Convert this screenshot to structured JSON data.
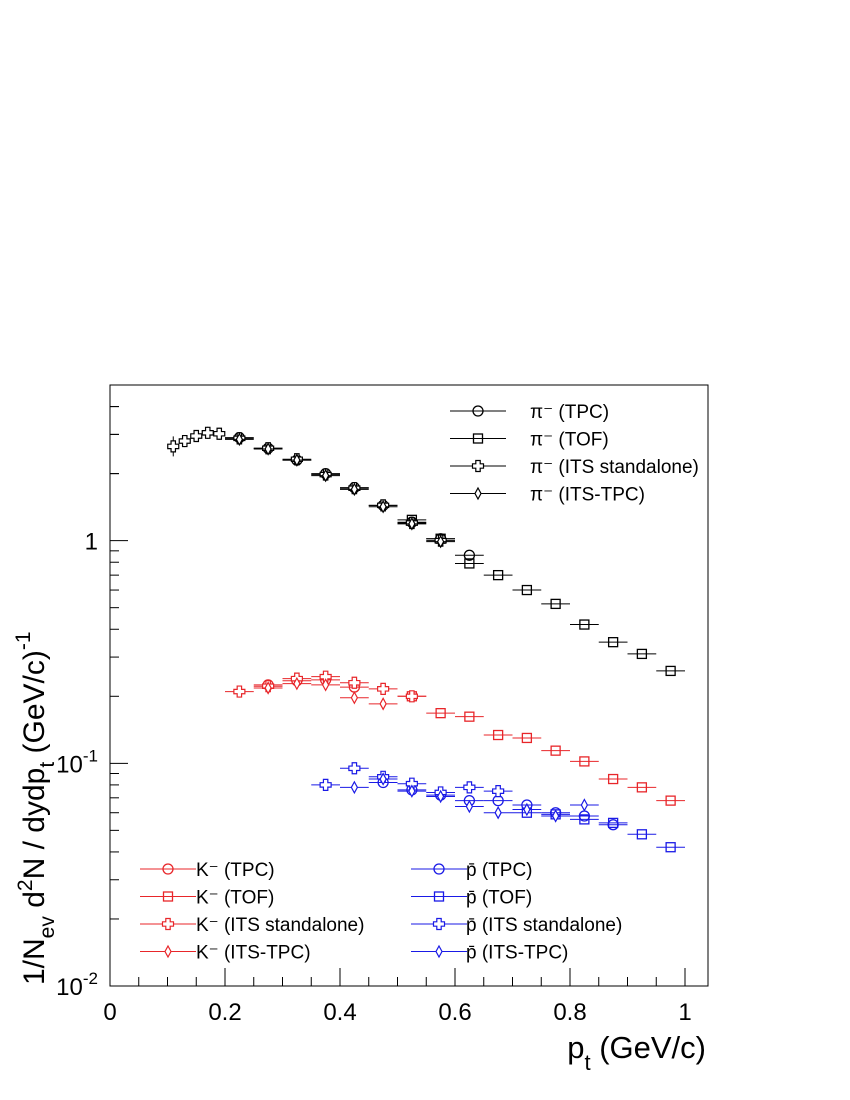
{
  "chart_data": {
    "type": "scatter",
    "title": "",
    "xlabel": "p_t (GeV/c)",
    "ylabel": "1/N_ev d^2N / dydp_t (GeV/c)^-1",
    "xlim": [
      0,
      1.04
    ],
    "ylim": [
      0.01,
      5
    ],
    "yscale": "log",
    "grid": false,
    "x_ticks": [
      "0",
      "0.2",
      "0.4",
      "0.6",
      "0.8",
      "1"
    ],
    "y_ticks": [
      "10^-2",
      "10^-1",
      "1"
    ],
    "legend_positions": [
      "top-right",
      "bottom-left",
      "bottom-center"
    ],
    "series": [
      {
        "name": "π⁻ (TPC)",
        "group": "pi",
        "color": "#000000",
        "marker": "circle",
        "points": [
          [
            0.225,
            2.9
          ],
          [
            0.275,
            2.6
          ],
          [
            0.325,
            2.3
          ],
          [
            0.375,
            2.0
          ],
          [
            0.425,
            1.73
          ],
          [
            0.475,
            1.44
          ],
          [
            0.525,
            1.21
          ],
          [
            0.575,
            1.02
          ],
          [
            0.625,
            0.86
          ]
        ]
      },
      {
        "name": "π⁻ (TOF)",
        "group": "pi",
        "color": "#000000",
        "marker": "square",
        "points": [
          [
            0.525,
            1.24
          ],
          [
            0.575,
            1.02
          ],
          [
            0.625,
            0.79
          ],
          [
            0.675,
            0.7
          ],
          [
            0.725,
            0.6
          ],
          [
            0.775,
            0.52
          ],
          [
            0.825,
            0.42
          ],
          [
            0.875,
            0.35
          ],
          [
            0.925,
            0.31
          ],
          [
            0.975,
            0.26
          ]
        ]
      },
      {
        "name": "π⁻ (ITS standalone)",
        "group": "pi",
        "color": "#000000",
        "marker": "cross",
        "points": [
          [
            0.11,
            2.65
          ],
          [
            0.13,
            2.8
          ],
          [
            0.15,
            2.95
          ],
          [
            0.17,
            3.05
          ],
          [
            0.19,
            3.02
          ],
          [
            0.225,
            2.88
          ],
          [
            0.275,
            2.6
          ],
          [
            0.325,
            2.32
          ],
          [
            0.375,
            1.98
          ],
          [
            0.425,
            1.72
          ],
          [
            0.475,
            1.44
          ],
          [
            0.525,
            1.2
          ],
          [
            0.575,
            1.0
          ]
        ]
      },
      {
        "name": "π⁻ (ITS-TPC)",
        "group": "pi",
        "color": "#000000",
        "marker": "diamond",
        "points": [
          [
            0.225,
            2.85
          ],
          [
            0.275,
            2.58
          ],
          [
            0.325,
            2.3
          ],
          [
            0.375,
            1.96
          ],
          [
            0.425,
            1.7
          ],
          [
            0.475,
            1.42
          ],
          [
            0.525,
            1.19
          ],
          [
            0.575,
            0.99
          ]
        ]
      },
      {
        "name": "K⁻ (TPC)",
        "group": "K",
        "color": "#e8262a",
        "marker": "circle",
        "points": [
          [
            0.275,
            0.225
          ],
          [
            0.325,
            0.235
          ],
          [
            0.375,
            0.237
          ],
          [
            0.425,
            0.22
          ]
        ]
      },
      {
        "name": "K⁻ (TOF)",
        "group": "K",
        "color": "#e8262a",
        "marker": "square",
        "points": [
          [
            0.525,
            0.2
          ],
          [
            0.575,
            0.168
          ],
          [
            0.625,
            0.162
          ],
          [
            0.675,
            0.134
          ],
          [
            0.725,
            0.13
          ],
          [
            0.775,
            0.114
          ],
          [
            0.825,
            0.102
          ],
          [
            0.875,
            0.085
          ],
          [
            0.925,
            0.078
          ],
          [
            0.975,
            0.068
          ]
        ]
      },
      {
        "name": "K⁻ (ITS standalone)",
        "group": "K",
        "color": "#e8262a",
        "marker": "cross",
        "points": [
          [
            0.225,
            0.21
          ],
          [
            0.275,
            0.222
          ],
          [
            0.325,
            0.24
          ],
          [
            0.375,
            0.245
          ],
          [
            0.425,
            0.23
          ],
          [
            0.475,
            0.216
          ],
          [
            0.525,
            0.2
          ]
        ]
      },
      {
        "name": "K⁻ (ITS-TPC)",
        "group": "K",
        "color": "#e8262a",
        "marker": "diamond",
        "points": [
          [
            0.275,
            0.218
          ],
          [
            0.325,
            0.228
          ],
          [
            0.375,
            0.225
          ],
          [
            0.425,
            0.197
          ],
          [
            0.475,
            0.185
          ]
        ]
      },
      {
        "name": "p̄ (TPC)",
        "group": "p",
        "color": "#1a1ae6",
        "marker": "circle",
        "points": [
          [
            0.475,
            0.082
          ],
          [
            0.525,
            0.076
          ],
          [
            0.575,
            0.072
          ],
          [
            0.625,
            0.068
          ],
          [
            0.675,
            0.068
          ],
          [
            0.725,
            0.065
          ],
          [
            0.775,
            0.06
          ],
          [
            0.825,
            0.058
          ],
          [
            0.875,
            0.053
          ]
        ]
      },
      {
        "name": "p̄ (TOF)",
        "group": "p",
        "color": "#1a1ae6",
        "marker": "square",
        "points": [
          [
            0.725,
            0.06
          ],
          [
            0.775,
            0.059
          ],
          [
            0.825,
            0.056
          ],
          [
            0.875,
            0.054
          ],
          [
            0.925,
            0.048
          ],
          [
            0.975,
            0.042
          ]
        ]
      },
      {
        "name": "p̄ (ITS standalone)",
        "group": "p",
        "color": "#1a1ae6",
        "marker": "cross",
        "points": [
          [
            0.375,
            0.08
          ],
          [
            0.425,
            0.095
          ],
          [
            0.475,
            0.087
          ],
          [
            0.525,
            0.081
          ],
          [
            0.575,
            0.074
          ],
          [
            0.625,
            0.078
          ],
          [
            0.675,
            0.075
          ]
        ]
      },
      {
        "name": "p̄ (ITS-TPC)",
        "group": "p",
        "color": "#1a1ae6",
        "marker": "diamond",
        "points": [
          [
            0.425,
            0.078
          ],
          [
            0.475,
            0.085
          ],
          [
            0.525,
            0.075
          ],
          [
            0.575,
            0.071
          ],
          [
            0.625,
            0.064
          ],
          [
            0.675,
            0.06
          ],
          [
            0.725,
            0.062
          ],
          [
            0.775,
            0.058
          ],
          [
            0.825,
            0.065
          ]
        ]
      }
    ]
  }
}
